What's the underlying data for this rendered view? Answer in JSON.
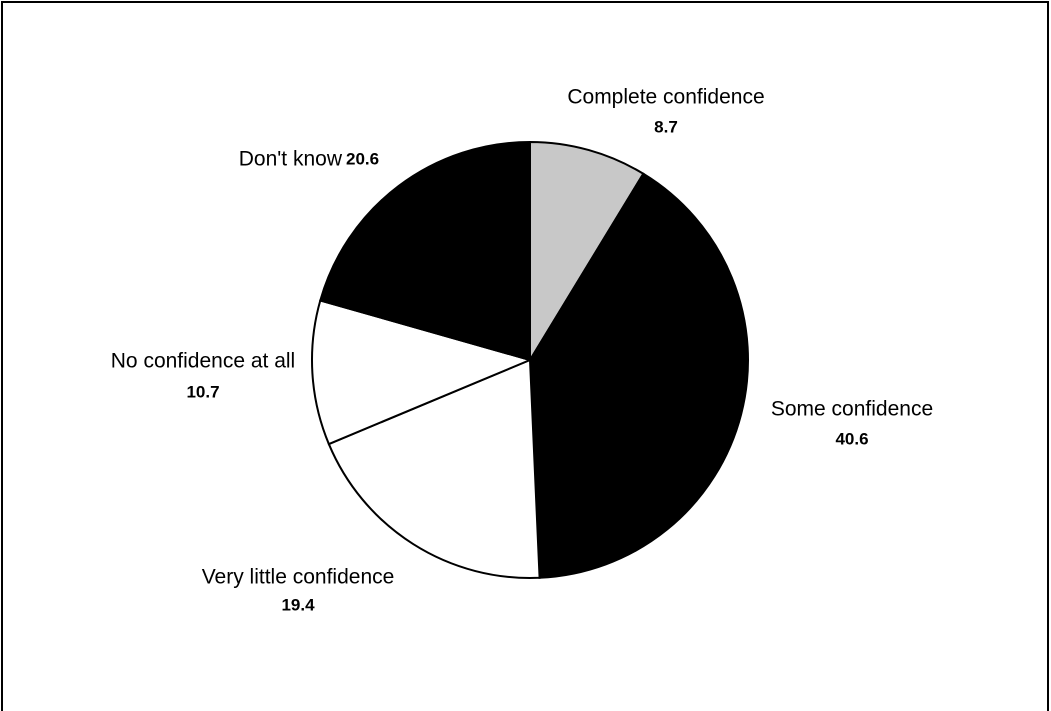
{
  "chart_data": {
    "type": "pie",
    "categories": [
      "Complete confidence",
      "Some confidence",
      "Very little confidence",
      "No confidence at all",
      "Don't know"
    ],
    "values": [
      8.7,
      40.6,
      19.4,
      10.7,
      20.6
    ],
    "colors": [
      "#c8c8c8",
      "#000000",
      "#ffffff",
      "#ffffff",
      "#000000"
    ]
  }
}
